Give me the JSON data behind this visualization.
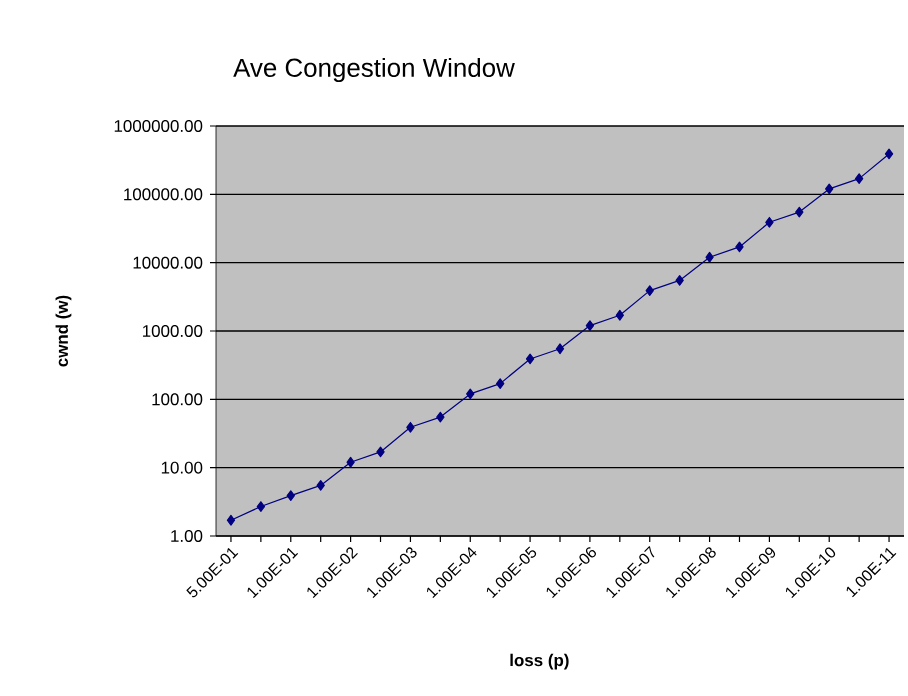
{
  "chart_data": {
    "type": "line",
    "title": "Ave Congestion Window",
    "xlabel": "loss (p)",
    "ylabel": "cwnd (w)",
    "categories": [
      "5.00E-01",
      null,
      "1.00E-01",
      null,
      "1.00E-02",
      null,
      "1.00E-03",
      null,
      "1.00E-04",
      null,
      "1.00E-05",
      null,
      "1.00E-06",
      null,
      "1.00E-07",
      null,
      "1.00E-08",
      null,
      "1.00E-09",
      null,
      "1.00E-10",
      null,
      "1.00E-11"
    ],
    "series": [
      {
        "color": "#000080",
        "values": [
          1.7,
          2.7,
          3.9,
          5.5,
          12,
          17,
          39,
          55,
          120,
          170,
          390,
          550,
          1200,
          1700,
          3900,
          5500,
          12000,
          17000,
          39000,
          55000,
          120000,
          170000,
          390000
        ]
      }
    ],
    "log": "y",
    "ylim": [
      1,
      1000000
    ],
    "yticks": [
      {
        "value": 1,
        "label": "1.00"
      },
      {
        "value": 10,
        "label": "10.00"
      },
      {
        "value": 100,
        "label": "100.00"
      },
      {
        "value": 1000,
        "label": "1000.00"
      },
      {
        "value": 10000,
        "label": "10000.00"
      },
      {
        "value": 100000,
        "label": "100000.00"
      },
      {
        "value": 1000000,
        "label": "1000000.00"
      }
    ],
    "grid": "y",
    "legend": false,
    "marker": "diamond",
    "line_style": "solid"
  }
}
